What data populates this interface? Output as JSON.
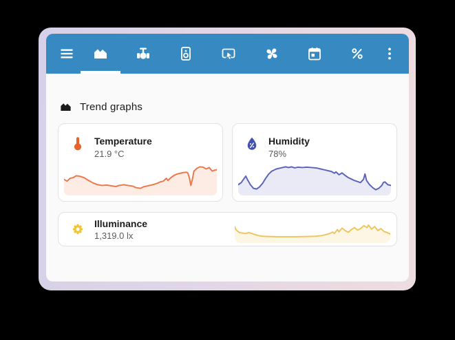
{
  "app": {
    "toolbar": {
      "background_color": "#3689c1",
      "icons": [
        {
          "name": "menu",
          "selected": false
        },
        {
          "name": "trend-graphs",
          "selected": true
        },
        {
          "name": "valve",
          "selected": false
        },
        {
          "name": "speaker",
          "selected": false
        },
        {
          "name": "touch",
          "selected": false
        },
        {
          "name": "fan",
          "selected": false
        },
        {
          "name": "calendar",
          "selected": false
        },
        {
          "name": "percent",
          "selected": false
        },
        {
          "name": "more-options",
          "selected": false
        }
      ]
    },
    "heading": {
      "icon": "area-chart-icon",
      "label": "Trend graphs"
    },
    "cards": [
      {
        "title": "Temperature",
        "value": "21.9 °C",
        "icon": "thermometer-icon",
        "accent": "#e8622c"
      },
      {
        "title": "Humidity",
        "value": "78%",
        "icon": "water-percent-icon",
        "accent": "#4351b0"
      },
      {
        "title": "Illuminance",
        "value": "1,319.0 lx",
        "icon": "sun-icon",
        "accent": "#f2c32e"
      }
    ],
    "window_frame_colors": {
      "left": "#d6d1e9",
      "right": "#eedde0"
    }
  },
  "chart_data": [
    {
      "type": "area",
      "name": "Temperature",
      "unit": "°C",
      "current_value": 21.9,
      "line_color": "#e87a4e",
      "fill_color": "#fcece4",
      "axes": "none (sparkline, normalized 0-100, y=0 is top)",
      "points": [
        [
          0,
          55
        ],
        [
          2,
          60
        ],
        [
          4,
          52
        ],
        [
          6,
          50
        ],
        [
          8,
          45
        ],
        [
          10,
          46
        ],
        [
          13,
          50
        ],
        [
          16,
          58
        ],
        [
          19,
          65
        ],
        [
          22,
          70
        ],
        [
          25,
          72
        ],
        [
          28,
          71
        ],
        [
          31,
          73
        ],
        [
          34,
          75
        ],
        [
          36,
          72
        ],
        [
          39,
          70
        ],
        [
          42,
          72
        ],
        [
          45,
          74
        ],
        [
          47,
          78
        ],
        [
          50,
          80
        ],
        [
          52,
          76
        ],
        [
          55,
          73
        ],
        [
          58,
          70
        ],
        [
          61,
          66
        ],
        [
          63,
          62
        ],
        [
          65,
          60
        ],
        [
          67,
          52
        ],
        [
          68,
          58
        ],
        [
          70,
          50
        ],
        [
          72,
          44
        ],
        [
          74,
          40
        ],
        [
          76,
          38
        ],
        [
          78,
          36
        ],
        [
          80,
          35
        ],
        [
          81,
          37
        ],
        [
          82,
          50
        ],
        [
          83,
          72
        ],
        [
          84,
          55
        ],
        [
          85,
          32
        ],
        [
          87,
          24
        ],
        [
          89,
          20
        ],
        [
          91,
          21
        ],
        [
          93,
          26
        ],
        [
          95,
          22
        ],
        [
          97,
          32
        ],
        [
          98,
          30
        ],
        [
          100,
          28
        ]
      ]
    },
    {
      "type": "area",
      "name": "Humidity",
      "unit": "%",
      "current_value": 78,
      "line_color": "#5d64b8",
      "fill_color": "#e9eaf6",
      "axes": "none (sparkline, normalized 0-100, y=0 is top)",
      "points": [
        [
          0,
          70
        ],
        [
          2,
          64
        ],
        [
          4,
          52
        ],
        [
          5,
          46
        ],
        [
          6,
          55
        ],
        [
          8,
          70
        ],
        [
          10,
          80
        ],
        [
          12,
          82
        ],
        [
          14,
          76
        ],
        [
          16,
          66
        ],
        [
          18,
          52
        ],
        [
          20,
          40
        ],
        [
          22,
          32
        ],
        [
          25,
          26
        ],
        [
          28,
          23
        ],
        [
          31,
          20
        ],
        [
          33,
          22
        ],
        [
          35,
          20
        ],
        [
          37,
          23
        ],
        [
          39,
          21
        ],
        [
          42,
          22
        ],
        [
          45,
          21
        ],
        [
          48,
          22
        ],
        [
          51,
          23
        ],
        [
          54,
          26
        ],
        [
          57,
          29
        ],
        [
          59,
          31
        ],
        [
          61,
          33
        ],
        [
          63,
          38
        ],
        [
          64,
          34
        ],
        [
          66,
          42
        ],
        [
          68,
          37
        ],
        [
          70,
          44
        ],
        [
          72,
          50
        ],
        [
          74,
          54
        ],
        [
          76,
          58
        ],
        [
          78,
          61
        ],
        [
          80,
          64
        ],
        [
          82,
          55
        ],
        [
          83,
          40
        ],
        [
          84,
          58
        ],
        [
          86,
          70
        ],
        [
          88,
          78
        ],
        [
          90,
          84
        ],
        [
          92,
          80
        ],
        [
          94,
          72
        ],
        [
          95,
          64
        ],
        [
          96,
          62
        ],
        [
          98,
          70
        ],
        [
          100,
          72
        ]
      ]
    },
    {
      "type": "area",
      "name": "Illuminance",
      "unit": "lx",
      "current_value": 1319.0,
      "line_color": "#eec65e",
      "fill_color": "#fdf6e5",
      "axes": "none (sparkline, normalized 0-100, y=0 is top)",
      "points": [
        [
          0,
          35
        ],
        [
          1,
          48
        ],
        [
          3,
          58
        ],
        [
          5,
          60
        ],
        [
          7,
          62
        ],
        [
          9,
          58
        ],
        [
          11,
          62
        ],
        [
          13,
          66
        ],
        [
          15,
          70
        ],
        [
          18,
          73
        ],
        [
          22,
          74
        ],
        [
          27,
          75
        ],
        [
          33,
          75
        ],
        [
          40,
          75
        ],
        [
          46,
          74
        ],
        [
          52,
          73
        ],
        [
          56,
          70
        ],
        [
          59,
          66
        ],
        [
          61,
          62
        ],
        [
          63,
          56
        ],
        [
          64,
          62
        ],
        [
          66,
          46
        ],
        [
          67,
          55
        ],
        [
          69,
          40
        ],
        [
          71,
          50
        ],
        [
          73,
          57
        ],
        [
          75,
          46
        ],
        [
          77,
          38
        ],
        [
          79,
          48
        ],
        [
          81,
          42
        ],
        [
          83,
          30
        ],
        [
          85,
          38
        ],
        [
          86,
          28
        ],
        [
          88,
          44
        ],
        [
          90,
          34
        ],
        [
          92,
          50
        ],
        [
          94,
          42
        ],
        [
          96,
          54
        ],
        [
          98,
          58
        ],
        [
          100,
          64
        ]
      ]
    }
  ]
}
